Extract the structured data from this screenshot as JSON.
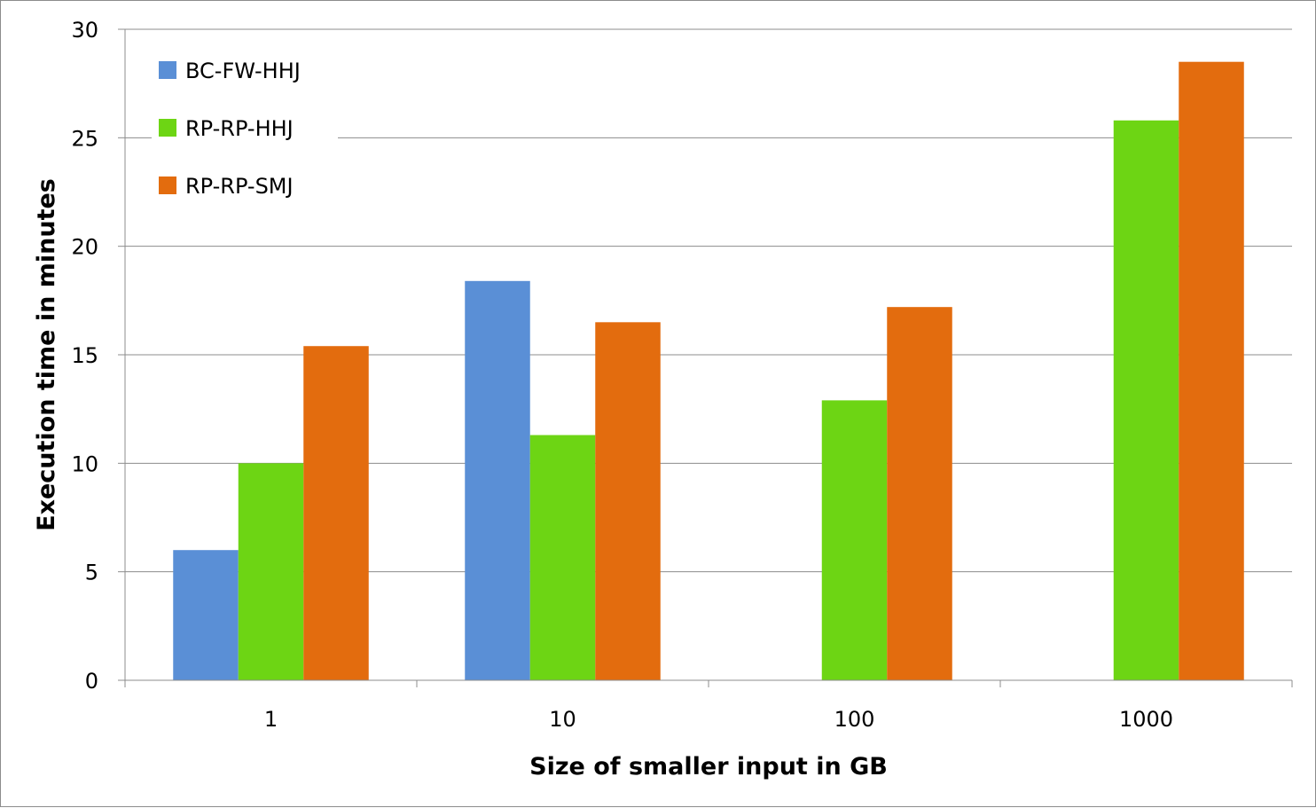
{
  "chart_data": {
    "type": "bar",
    "title": "",
    "xlabel": "Size of smaller input in GB",
    "ylabel": "Execution time in minutes",
    "categories": [
      "1",
      "10",
      "100",
      "1000"
    ],
    "ylim": [
      0,
      30
    ],
    "yticks": [
      0,
      5,
      10,
      15,
      20,
      25,
      30
    ],
    "grid": true,
    "legend_position": "top-left",
    "series": [
      {
        "name": "BC-FW-HHJ",
        "color": "#5a8fd6",
        "values": [
          6.0,
          18.4,
          null,
          null
        ]
      },
      {
        "name": "RP-RP-HHJ",
        "color": "#6dd514",
        "values": [
          10.0,
          11.3,
          12.9,
          25.8
        ]
      },
      {
        "name": "RP-RP-SMJ",
        "color": "#e36c0e",
        "values": [
          15.4,
          16.5,
          17.2,
          28.5
        ]
      }
    ]
  }
}
